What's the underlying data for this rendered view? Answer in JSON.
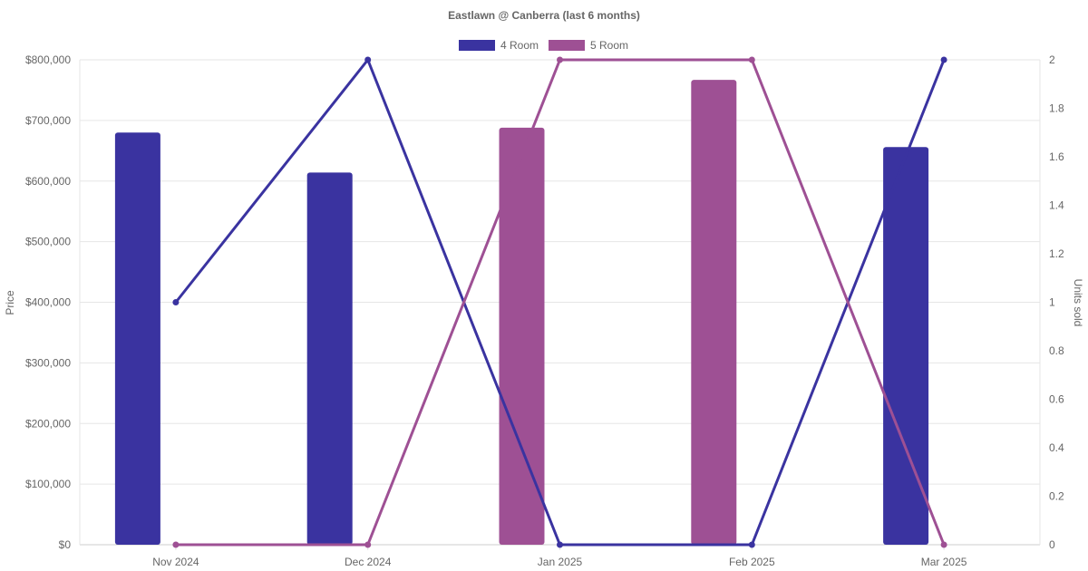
{
  "chart_data": {
    "type": "bar",
    "title": "Eastlawn @ Canberra (last 6 months)",
    "categories": [
      "Nov 2024",
      "Dec 2024",
      "Jan 2025",
      "Feb 2025",
      "Mar 2025"
    ],
    "y_left": {
      "label": "Price",
      "range": [
        0,
        800000
      ],
      "ticks": [
        "$0",
        "$100,000",
        "$200,000",
        "$300,000",
        "$400,000",
        "$500,000",
        "$600,000",
        "$700,000",
        "$800,000"
      ]
    },
    "y_right": {
      "label": "Units sold",
      "range": [
        0,
        2
      ],
      "ticks": [
        "0",
        "0.2",
        "0.4",
        "0.6",
        "0.8",
        "1",
        "1.2",
        "1.4",
        "1.6",
        "1.8",
        "2"
      ]
    },
    "legend_position": "top",
    "grid": true,
    "series": [
      {
        "name": "4 Room",
        "color": "#3a33a0",
        "price": [
          680000,
          614000,
          null,
          null,
          656000
        ],
        "units": [
          1,
          2,
          0,
          0,
          2
        ]
      },
      {
        "name": "5 Room",
        "color": "#9e5094",
        "price": [
          null,
          null,
          688000,
          767000,
          null
        ],
        "units": [
          0,
          0,
          2,
          2,
          0
        ]
      }
    ]
  }
}
